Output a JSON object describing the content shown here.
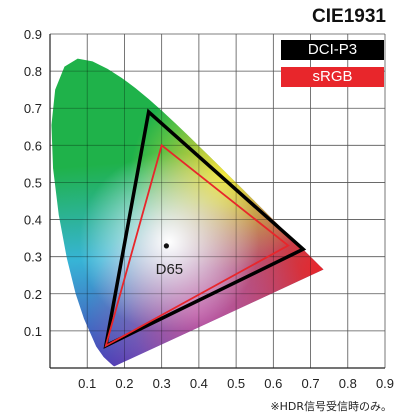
{
  "chart_data": {
    "type": "scatter",
    "title": "CIE1931",
    "xlabel": "",
    "ylabel": "",
    "xlim": [
      0,
      0.9
    ],
    "ylim": [
      0,
      0.9
    ],
    "grid": true,
    "xticks": [
      "0.1",
      "0.2",
      "0.3",
      "0.4",
      "0.5",
      "0.6",
      "0.7",
      "0.8",
      "0.9"
    ],
    "yticks": [
      "0.1",
      "0.2",
      "0.3",
      "0.4",
      "0.5",
      "0.6",
      "0.7",
      "0.8",
      "0.9"
    ],
    "legend_placement": "top-right",
    "series": [
      {
        "name": "DCI-P3",
        "color": "#000000",
        "vertices": [
          [
            0.68,
            0.32
          ],
          [
            0.265,
            0.69
          ],
          [
            0.15,
            0.06
          ]
        ]
      },
      {
        "name": "sRGB",
        "color": "#e8262b",
        "vertices": [
          [
            0.64,
            0.33
          ],
          [
            0.3,
            0.6
          ],
          [
            0.15,
            0.06
          ]
        ]
      }
    ],
    "white_point": {
      "label": "D65",
      "x": 0.3127,
      "y": 0.329
    },
    "spectral_locus": [
      [
        0.1741,
        0.005
      ],
      [
        0.1738,
        0.0049
      ],
      [
        0.1733,
        0.0048
      ],
      [
        0.1726,
        0.0048
      ],
      [
        0.1714,
        0.0051
      ],
      [
        0.1689,
        0.0069
      ],
      [
        0.1644,
        0.0109
      ],
      [
        0.1566,
        0.0177
      ],
      [
        0.144,
        0.0297
      ],
      [
        0.1241,
        0.0578
      ],
      [
        0.0913,
        0.1327
      ],
      [
        0.0687,
        0.2007
      ],
      [
        0.0454,
        0.295
      ],
      [
        0.0235,
        0.4127
      ],
      [
        0.0082,
        0.5384
      ],
      [
        0.0039,
        0.6548
      ],
      [
        0.0139,
        0.7502
      ],
      [
        0.0389,
        0.812
      ],
      [
        0.0743,
        0.8338
      ],
      [
        0.1142,
        0.8262
      ],
      [
        0.1547,
        0.8059
      ],
      [
        0.1929,
        0.7816
      ],
      [
        0.2296,
        0.7543
      ],
      [
        0.2658,
        0.7243
      ],
      [
        0.3016,
        0.6923
      ],
      [
        0.3373,
        0.6589
      ],
      [
        0.3731,
        0.6245
      ],
      [
        0.4087,
        0.5896
      ],
      [
        0.4441,
        0.5547
      ],
      [
        0.4788,
        0.5202
      ],
      [
        0.5125,
        0.4866
      ],
      [
        0.5448,
        0.4544
      ],
      [
        0.5752,
        0.4242
      ],
      [
        0.6029,
        0.3965
      ],
      [
        0.627,
        0.3725
      ],
      [
        0.6482,
        0.3514
      ],
      [
        0.6658,
        0.334
      ],
      [
        0.6801,
        0.3197
      ],
      [
        0.6915,
        0.3083
      ],
      [
        0.7006,
        0.2993
      ],
      [
        0.7079,
        0.292
      ],
      [
        0.714,
        0.2859
      ],
      [
        0.719,
        0.2809
      ],
      [
        0.723,
        0.277
      ],
      [
        0.726,
        0.274
      ],
      [
        0.7283,
        0.2717
      ],
      [
        0.7347,
        0.2653
      ]
    ],
    "gradient_colors": {
      "red": "#e8262b",
      "green": "#1fb24a",
      "blue": "#4b3bb5",
      "cyan": "#37b4d6",
      "yellow": "#f2e83a",
      "magenta": "#c45aa8",
      "white": "#ffffff"
    }
  },
  "footnote": "※HDR信号受信時のみ。"
}
